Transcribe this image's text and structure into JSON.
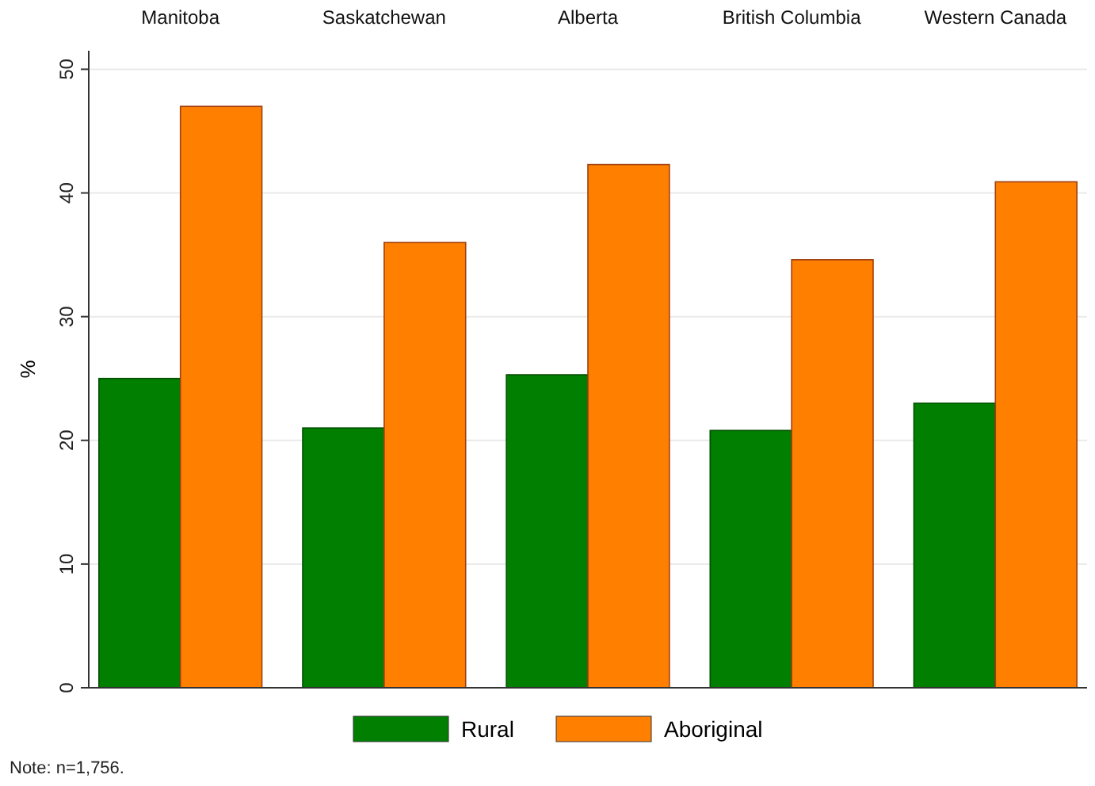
{
  "chart_data": {
    "type": "bar",
    "ylabel": "%",
    "categories": [
      "Manitoba",
      "Saskatchewan",
      "Alberta",
      "British Columbia",
      "Western Canada"
    ],
    "series": [
      {
        "name": "Rural",
        "color": "#007f00",
        "values": [
          25.0,
          21.0,
          25.3,
          20.8,
          23.0
        ]
      },
      {
        "name": "Aboriginal",
        "color": "#ff7f00",
        "values": [
          47.0,
          36.0,
          42.3,
          34.6,
          40.9
        ]
      }
    ],
    "ylim": [
      0,
      51.5
    ],
    "yticks": [
      0,
      10,
      20,
      30,
      40,
      50
    ],
    "grid": "y",
    "legend": "bottom",
    "annotations": [
      "Note: n=1,756."
    ]
  }
}
